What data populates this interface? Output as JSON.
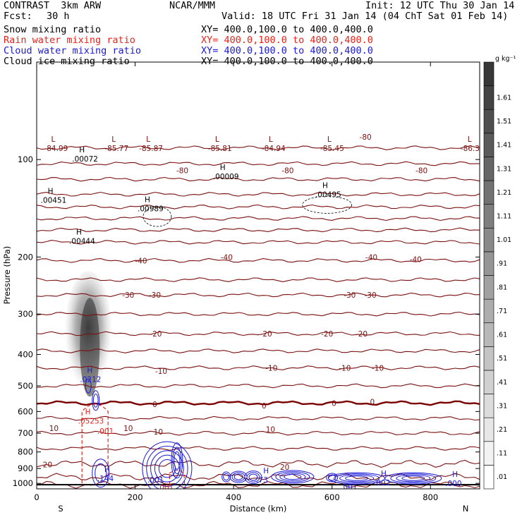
{
  "header": {
    "title_left": "CONTRAST  3km ARW",
    "center": "NCAR/MMM",
    "init": "Init: 12 UTC Thu 30 Jan 14",
    "fcst_label": "Fcst:",
    "fcst_value": "30 h",
    "valid": "Valid: 18 UTC Fri 31 Jan 14 (04 ChT Sat 01 Feb 14)",
    "fields": [
      {
        "name": "Snow mixing ratio",
        "xy": "XY= 400.0,100.0 to 400.0,400.0",
        "color": "#000000"
      },
      {
        "name": "Rain water mixing ratio",
        "xy": "XY= 400.0,100.0 to 400.0,400.0",
        "color": "#e8231b"
      },
      {
        "name": "Cloud water mixing ratio",
        "xy": "XY= 400.0,100.0 to 400.0,400.0",
        "color": "#1a1ad6"
      },
      {
        "name": "Cloud ice mixing ratio",
        "xy": "XY= 400.0,100.0 to 400.0,400.0",
        "color": "#000000"
      }
    ]
  },
  "chart_data": {
    "type": "cross-section",
    "xlabel": "Distance (km)",
    "ylabel": "Pressure (hPa)",
    "xlim": [
      0,
      900
    ],
    "ylim": [
      1040,
      50
    ],
    "y_scale": "log",
    "x_ticks": [
      "0",
      "200",
      "400",
      "600",
      "800"
    ],
    "y_ticks": [
      "100",
      "200",
      "300",
      "400",
      "500",
      "600",
      "700",
      "800",
      "900",
      "1000"
    ],
    "end_labels": {
      "left": "S",
      "right": "N"
    },
    "colorbar": {
      "unit": "g kg⁻¹",
      "levels": [
        ".01",
        ".11",
        ".21",
        ".31",
        ".41",
        ".51",
        ".61",
        ".71",
        ".81",
        ".91",
        "1.01",
        "1.11",
        "1.21",
        "1.31",
        "1.41",
        "1.51",
        "1.61"
      ]
    },
    "temperature_contours": {
      "levels": [
        "-80",
        "-40",
        "-30",
        "-20",
        "-10",
        "0",
        "10",
        "20"
      ],
      "color": "#7a1010",
      "freezing_line_color": "#7a0000",
      "labels": [
        {
          "text": "-80",
          "x": 668,
          "p": 85
        },
        {
          "text": "-80",
          "x": 296,
          "p": 108
        },
        {
          "text": "-80",
          "x": 510,
          "p": 108
        },
        {
          "text": "-80",
          "x": 782,
          "p": 108
        },
        {
          "text": "-40",
          "x": 212,
          "p": 205
        },
        {
          "text": "-40",
          "x": 386,
          "p": 200
        },
        {
          "text": "-40",
          "x": 680,
          "p": 200
        },
        {
          "text": "-40",
          "x": 770,
          "p": 203
        },
        {
          "text": "-30",
          "x": 186,
          "p": 262
        },
        {
          "text": "-30",
          "x": 240,
          "p": 262
        },
        {
          "text": "-30",
          "x": 636,
          "p": 262
        },
        {
          "text": "-30",
          "x": 678,
          "p": 262
        },
        {
          "text": "-20",
          "x": 242,
          "p": 345
        },
        {
          "text": "-20",
          "x": 466,
          "p": 345
        },
        {
          "text": "-20",
          "x": 590,
          "p": 345
        },
        {
          "text": "-20",
          "x": 660,
          "p": 345
        },
        {
          "text": "-10",
          "x": 253,
          "p": 450
        },
        {
          "text": "-10",
          "x": 477,
          "p": 440
        },
        {
          "text": "-10",
          "x": 626,
          "p": 440
        },
        {
          "text": "-10",
          "x": 693,
          "p": 440
        },
        {
          "text": "0",
          "x": 240,
          "p": 570
        },
        {
          "text": "0",
          "x": 462,
          "p": 575
        },
        {
          "text": "0",
          "x": 604,
          "p": 565
        },
        {
          "text": "0",
          "x": 682,
          "p": 560
        },
        {
          "text": "10",
          "x": 35,
          "p": 675
        },
        {
          "text": "10",
          "x": 186,
          "p": 675
        },
        {
          "text": "10",
          "x": 247,
          "p": 693
        },
        {
          "text": "10",
          "x": 475,
          "p": 680
        },
        {
          "text": "20",
          "x": 22,
          "p": 875
        },
        {
          "text": "20",
          "x": 504,
          "p": 890
        }
      ]
    },
    "extrema_labels": [
      {
        "mark": "L",
        "value": "-84.99",
        "x": 15,
        "p": 90,
        "color": "#7a1010"
      },
      {
        "mark": "L",
        "value": "-85.77",
        "x": 138,
        "p": 90,
        "color": "#7a1010"
      },
      {
        "mark": "L",
        "value": "-85.87",
        "x": 208,
        "p": 90,
        "color": "#7a1010"
      },
      {
        "mark": "L",
        "value": "-85.81",
        "x": 348,
        "p": 90,
        "color": "#7a1010"
      },
      {
        "mark": "L",
        "value": "-84.94",
        "x": 457,
        "p": 90,
        "color": "#7a1010"
      },
      {
        "mark": "L",
        "value": "-85.45",
        "x": 576,
        "p": 90,
        "color": "#7a1010"
      },
      {
        "mark": "L",
        "value": "-86.3",
        "x": 861,
        "p": 90,
        "color": "#7a1010"
      },
      {
        "mark": "H",
        "value": ".00072",
        "x": 72,
        "p": 97,
        "color": "#000000"
      },
      {
        "mark": "H",
        "value": ".00451",
        "x": 8,
        "p": 130,
        "color": "#000000"
      },
      {
        "mark": "H",
        "value": ".00009",
        "x": 358,
        "p": 110,
        "color": "#000000"
      },
      {
        "mark": "H",
        "value": ".00495",
        "x": 566,
        "p": 125,
        "color": "#000000"
      },
      {
        "mark": "H",
        "value": ".00989",
        "x": 205,
        "p": 138,
        "color": "#000000"
      },
      {
        "mark": "H",
        "value": ".00444",
        "x": 66,
        "p": 174,
        "color": "#000000"
      },
      {
        "mark": "H",
        "value": ".0212",
        "x": 88,
        "p": 465,
        "color": "#1a1ad6"
      },
      {
        "mark": "H",
        "value": ".05253",
        "x": 84,
        "p": 625,
        "color": "#e8231b"
      },
      {
        "mark": "",
        "value": ".001",
        "x": 123,
        "p": 672,
        "color": "#e8231b"
      },
      {
        "mark": "H",
        "value": ".144",
        "x": 123,
        "p": 940,
        "color": "#1a1ad6"
      },
      {
        "mark": "",
        "value": ".001",
        "x": 225,
        "p": 950,
        "color": "#1a1ad6"
      },
      {
        "mark": "H",
        "value": ".73",
        "x": 446,
        "p": 950,
        "color": "#1a1ad6"
      },
      {
        "mark": "",
        "value": ".001",
        "x": 618,
        "p": 1000,
        "color": "#1a1ad6"
      },
      {
        "mark": "H",
        "value": ".000",
        "x": 830,
        "p": 975,
        "color": "#1a1ad6"
      },
      {
        "mark": "",
        "value": ".001",
        "x": 245,
        "p": 1005,
        "color": "#e8231b"
      },
      {
        "mark": "H",
        "value": ".002",
        "x": 685,
        "p": 970,
        "color": "#1a1ad6"
      }
    ],
    "snow_column": {
      "x_center": 105,
      "p_top": 230,
      "p_bottom": 520,
      "max_shade": 0.85
    },
    "rain_region": {
      "x_left": 92,
      "x_right": 145,
      "p_top": 560,
      "p_bottom": 1000
    }
  }
}
